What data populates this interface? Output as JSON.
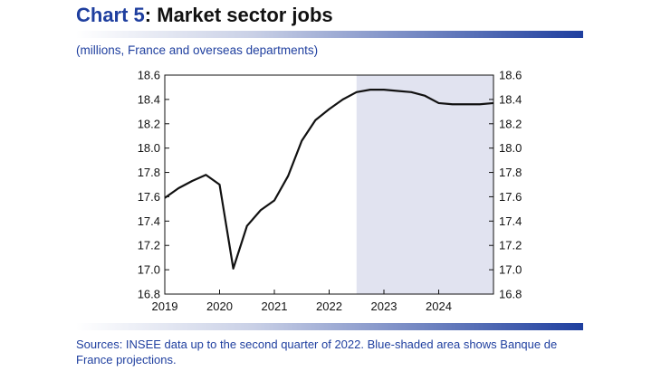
{
  "header": {
    "chart_number": "Chart 5",
    "title": "Market sector jobs",
    "subtitle": "(millions, France and overseas departments)"
  },
  "footer": {
    "source": "Sources: INSEE data up to the second quarter of 2022. Blue-shaded area shows Banque de France projections."
  },
  "colors": {
    "accent": "#1f3f9f",
    "shade": "#e1e3f0",
    "line": "#111111"
  },
  "chart_data": {
    "type": "line",
    "title": "Market sector jobs",
    "subtitle": "(millions, France and overseas departments)",
    "xlabel": "",
    "ylabel": "",
    "xlim": [
      2019.0,
      2025.0
    ],
    "ylim": [
      16.8,
      18.6
    ],
    "yticks": [
      16.8,
      17.0,
      17.2,
      17.4,
      17.6,
      17.8,
      18.0,
      18.2,
      18.4,
      18.6
    ],
    "ytick_labels": [
      "16.8",
      "17.0",
      "17.2",
      "17.4",
      "17.6",
      "17.8",
      "18.0",
      "18.2",
      "18.4",
      "18.6"
    ],
    "xticks": [
      2019,
      2020,
      2021,
      2022,
      2023,
      2024
    ],
    "xtick_labels": [
      "2019",
      "2020",
      "2021",
      "2022",
      "2023",
      "2024"
    ],
    "dual_y_axis": true,
    "grid": false,
    "shaded_region": {
      "x_start": 2022.5,
      "x_end": 2025.0
    },
    "series": [
      {
        "x": [
          2019.0,
          2019.25,
          2019.5,
          2019.75,
          2020.0,
          2020.25,
          2020.5,
          2020.75,
          2021.0,
          2021.25,
          2021.5,
          2021.75,
          2022.0,
          2022.25,
          2022.5,
          2022.75,
          2023.0,
          2023.25,
          2023.5,
          2023.75,
          2024.0,
          2024.25,
          2024.5,
          2024.75,
          2025.0
        ],
        "values": [
          17.59,
          17.67,
          17.73,
          17.78,
          17.7,
          17.01,
          17.36,
          17.49,
          17.57,
          17.77,
          18.06,
          18.23,
          18.32,
          18.4,
          18.46,
          18.48,
          18.48,
          18.47,
          18.46,
          18.43,
          18.37,
          18.36,
          18.36,
          18.36,
          18.37
        ]
      }
    ]
  }
}
